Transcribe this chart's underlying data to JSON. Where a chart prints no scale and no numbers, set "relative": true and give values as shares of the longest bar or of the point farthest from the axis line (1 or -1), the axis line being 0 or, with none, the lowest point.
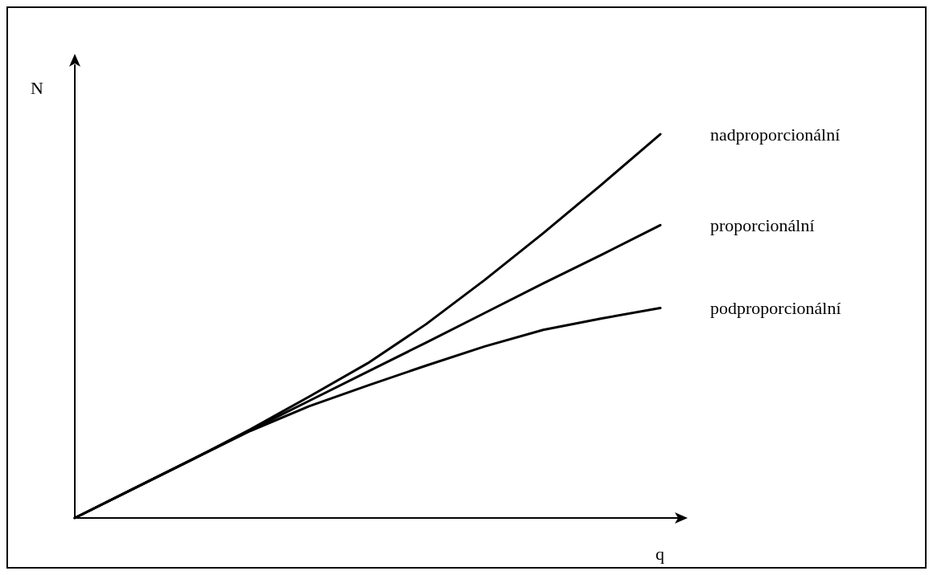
{
  "chart_data": {
    "type": "line",
    "relative": true,
    "xlabel": "q",
    "ylabel": "N",
    "categories": [
      null,
      null,
      null,
      null,
      null,
      null,
      null,
      null,
      null,
      null,
      null
    ],
    "marker": "none",
    "line_style": "solid",
    "legend": false,
    "grid": false,
    "series": [
      {
        "name": "nadproporcionální",
        "color": "#000000",
        "values": [
          0,
          0.076,
          0.152,
          0.231,
          0.316,
          0.403,
          0.505,
          0.62,
          0.742,
          0.869,
          1
        ]
      },
      {
        "name": "proporcionální",
        "color": "#000000",
        "values": [
          0,
          0.076,
          0.152,
          0.229,
          0.305,
          0.381,
          0.457,
          0.534,
          0.611,
          0.686,
          0.763
        ]
      },
      {
        "name": "podproporcionální",
        "color": "#000000",
        "values": [
          0,
          0.076,
          0.152,
          0.227,
          0.291,
          0.345,
          0.397,
          0.447,
          0.49,
          0.52,
          0.547
        ]
      }
    ]
  }
}
